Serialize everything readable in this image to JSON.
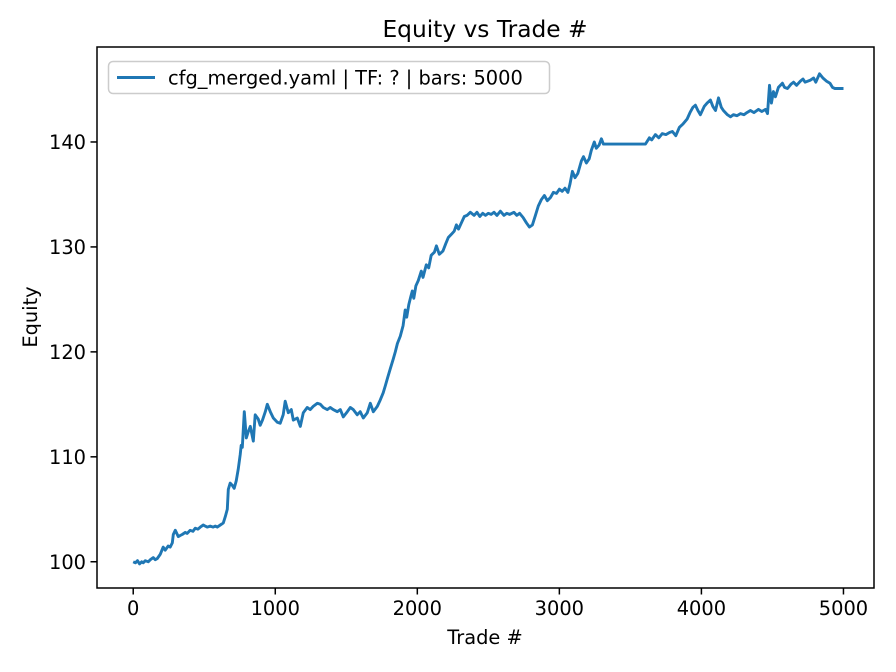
{
  "chart_data": {
    "type": "line",
    "title": "Equity vs Trade #",
    "xlabel": "Trade #",
    "ylabel": "Equity",
    "legend": [
      "cfg_merged.yaml | TF: ? | bars: 5000"
    ],
    "legend_position": "upper left",
    "grid": false,
    "line_color": "#1f77b4",
    "background_color": "#ffffff",
    "spine_color": "#000000",
    "legend_border_color": "#cccccc",
    "xlim": [
      -255,
      5215
    ],
    "ylim": [
      97.5,
      149.05
    ],
    "x_ticks": [
      0,
      1000,
      2000,
      3000,
      4000,
      5000
    ],
    "y_ticks": [
      100,
      110,
      120,
      130,
      140
    ],
    "series": [
      {
        "name": "cfg_merged.yaml | TF: ? | bars: 5000",
        "points": [
          [
            0,
            100.0
          ],
          [
            15,
            99.9
          ],
          [
            30,
            100.1
          ],
          [
            45,
            99.8
          ],
          [
            60,
            100.0
          ],
          [
            70,
            99.9
          ],
          [
            85,
            100.1
          ],
          [
            106,
            100.0
          ],
          [
            120,
            100.2
          ],
          [
            141,
            100.4
          ],
          [
            155,
            100.2
          ],
          [
            169,
            100.3
          ],
          [
            190,
            100.7
          ],
          [
            211,
            101.4
          ],
          [
            225,
            101.1
          ],
          [
            246,
            101.5
          ],
          [
            260,
            101.4
          ],
          [
            275,
            101.8
          ],
          [
            282,
            102.6
          ],
          [
            296,
            103.0
          ],
          [
            317,
            102.4
          ],
          [
            331,
            102.5
          ],
          [
            345,
            102.6
          ],
          [
            366,
            102.8
          ],
          [
            380,
            102.7
          ],
          [
            401,
            103.0
          ],
          [
            420,
            102.9
          ],
          [
            437,
            103.2
          ],
          [
            455,
            103.1
          ],
          [
            472,
            103.3
          ],
          [
            493,
            103.5
          ],
          [
            507,
            103.4
          ],
          [
            521,
            103.3
          ],
          [
            542,
            103.4
          ],
          [
            563,
            103.3
          ],
          [
            578,
            103.4
          ],
          [
            592,
            103.3
          ],
          [
            613,
            103.5
          ],
          [
            634,
            103.7
          ],
          [
            648,
            104.3
          ],
          [
            662,
            105.0
          ],
          [
            669,
            106.9
          ],
          [
            683,
            107.5
          ],
          [
            697,
            107.3
          ],
          [
            711,
            107.0
          ],
          [
            725,
            107.7
          ],
          [
            739,
            108.8
          ],
          [
            753,
            110.2
          ],
          [
            760,
            111.1
          ],
          [
            768,
            110.9
          ],
          [
            775,
            112.6
          ],
          [
            782,
            114.3
          ],
          [
            796,
            111.8
          ],
          [
            810,
            112.4
          ],
          [
            824,
            112.9
          ],
          [
            845,
            111.5
          ],
          [
            859,
            114.0
          ],
          [
            880,
            113.6
          ],
          [
            894,
            113.0
          ],
          [
            910,
            113.5
          ],
          [
            930,
            114.3
          ],
          [
            944,
            115.0
          ],
          [
            965,
            114.3
          ],
          [
            986,
            113.7
          ],
          [
            1014,
            113.3
          ],
          [
            1035,
            113.2
          ],
          [
            1056,
            114.0
          ],
          [
            1070,
            115.3
          ],
          [
            1092,
            114.2
          ],
          [
            1113,
            114.5
          ],
          [
            1127,
            113.5
          ],
          [
            1155,
            113.7
          ],
          [
            1176,
            112.9
          ],
          [
            1197,
            114.2
          ],
          [
            1225,
            114.7
          ],
          [
            1246,
            114.5
          ],
          [
            1267,
            114.8
          ],
          [
            1296,
            115.1
          ],
          [
            1317,
            115.0
          ],
          [
            1338,
            114.7
          ],
          [
            1366,
            114.5
          ],
          [
            1387,
            114.7
          ],
          [
            1408,
            114.5
          ],
          [
            1437,
            114.3
          ],
          [
            1458,
            114.5
          ],
          [
            1479,
            113.8
          ],
          [
            1507,
            114.3
          ],
          [
            1528,
            114.7
          ],
          [
            1549,
            114.5
          ],
          [
            1577,
            114.0
          ],
          [
            1598,
            114.3
          ],
          [
            1620,
            113.7
          ],
          [
            1648,
            114.2
          ],
          [
            1669,
            115.1
          ],
          [
            1690,
            114.3
          ],
          [
            1718,
            114.8
          ],
          [
            1739,
            115.4
          ],
          [
            1760,
            116.1
          ],
          [
            1775,
            116.8
          ],
          [
            1790,
            117.5
          ],
          [
            1810,
            118.4
          ],
          [
            1830,
            119.3
          ],
          [
            1845,
            120.0
          ],
          [
            1860,
            120.8
          ],
          [
            1880,
            121.5
          ],
          [
            1900,
            122.5
          ],
          [
            1915,
            124.0
          ],
          [
            1925,
            123.3
          ],
          [
            1940,
            124.5
          ],
          [
            1955,
            125.3
          ],
          [
            1965,
            125.8
          ],
          [
            1975,
            125.1
          ],
          [
            1990,
            126.3
          ],
          [
            2007,
            126.8
          ],
          [
            2028,
            127.7
          ],
          [
            2040,
            127.1
          ],
          [
            2063,
            128.3
          ],
          [
            2080,
            128.0
          ],
          [
            2098,
            129.2
          ],
          [
            2120,
            129.5
          ],
          [
            2134,
            130.1
          ],
          [
            2155,
            129.3
          ],
          [
            2180,
            129.6
          ],
          [
            2200,
            130.3
          ],
          [
            2218,
            130.9
          ],
          [
            2240,
            131.2
          ],
          [
            2260,
            131.5
          ],
          [
            2275,
            132.1
          ],
          [
            2290,
            131.7
          ],
          [
            2310,
            132.3
          ],
          [
            2331,
            132.9
          ],
          [
            2350,
            133.0
          ],
          [
            2373,
            133.3
          ],
          [
            2400,
            133.0
          ],
          [
            2420,
            133.3
          ],
          [
            2440,
            132.9
          ],
          [
            2460,
            133.2
          ],
          [
            2480,
            133.0
          ],
          [
            2500,
            133.2
          ],
          [
            2520,
            133.1
          ],
          [
            2540,
            133.3
          ],
          [
            2560,
            133.0
          ],
          [
            2585,
            133.4
          ],
          [
            2610,
            133.0
          ],
          [
            2630,
            133.2
          ],
          [
            2650,
            133.1
          ],
          [
            2680,
            133.3
          ],
          [
            2700,
            133.0
          ],
          [
            2720,
            133.2
          ],
          [
            2745,
            132.8
          ],
          [
            2768,
            132.3
          ],
          [
            2789,
            131.9
          ],
          [
            2810,
            132.1
          ],
          [
            2831,
            133.0
          ],
          [
            2852,
            133.9
          ],
          [
            2873,
            134.5
          ],
          [
            2895,
            134.9
          ],
          [
            2915,
            134.4
          ],
          [
            2937,
            134.7
          ],
          [
            2958,
            135.2
          ],
          [
            2980,
            135.1
          ],
          [
            3000,
            135.5
          ],
          [
            3020,
            135.3
          ],
          [
            3040,
            135.6
          ],
          [
            3060,
            135.2
          ],
          [
            3075,
            136.0
          ],
          [
            3092,
            137.2
          ],
          [
            3110,
            136.6
          ],
          [
            3130,
            137.0
          ],
          [
            3155,
            138.2
          ],
          [
            3170,
            138.6
          ],
          [
            3190,
            138.0
          ],
          [
            3210,
            138.4
          ],
          [
            3225,
            139.2
          ],
          [
            3246,
            140.0
          ],
          [
            3260,
            139.4
          ],
          [
            3280,
            139.7
          ],
          [
            3296,
            140.3
          ],
          [
            3310,
            139.8
          ],
          [
            3320,
            139.8
          ],
          [
            3606,
            139.8
          ],
          [
            3634,
            140.4
          ],
          [
            3650,
            140.2
          ],
          [
            3676,
            140.7
          ],
          [
            3700,
            140.4
          ],
          [
            3725,
            140.8
          ],
          [
            3750,
            140.7
          ],
          [
            3775,
            140.9
          ],
          [
            3796,
            141.0
          ],
          [
            3820,
            140.6
          ],
          [
            3845,
            141.4
          ],
          [
            3870,
            141.7
          ],
          [
            3900,
            142.2
          ],
          [
            3920,
            142.8
          ],
          [
            3940,
            143.3
          ],
          [
            3958,
            143.5
          ],
          [
            3975,
            143.0
          ],
          [
            3993,
            142.6
          ],
          [
            4020,
            143.4
          ],
          [
            4040,
            143.7
          ],
          [
            4063,
            144.0
          ],
          [
            4080,
            143.4
          ],
          [
            4099,
            143.0
          ],
          [
            4120,
            144.2
          ],
          [
            4140,
            143.3
          ],
          [
            4155,
            143.0
          ],
          [
            4183,
            142.6
          ],
          [
            4205,
            142.4
          ],
          [
            4225,
            142.6
          ],
          [
            4250,
            142.5
          ],
          [
            4275,
            142.7
          ],
          [
            4300,
            142.6
          ],
          [
            4320,
            142.8
          ],
          [
            4345,
            143.0
          ],
          [
            4370,
            142.8
          ],
          [
            4401,
            143.1
          ],
          [
            4425,
            142.9
          ],
          [
            4451,
            143.1
          ],
          [
            4465,
            142.7
          ],
          [
            4479,
            145.4
          ],
          [
            4493,
            143.7
          ],
          [
            4507,
            144.8
          ],
          [
            4521,
            144.3
          ],
          [
            4542,
            145.2
          ],
          [
            4570,
            145.6
          ],
          [
            4585,
            145.2
          ],
          [
            4606,
            145.1
          ],
          [
            4630,
            145.5
          ],
          [
            4648,
            145.7
          ],
          [
            4670,
            145.4
          ],
          [
            4697,
            145.8
          ],
          [
            4715,
            146.0
          ],
          [
            4730,
            145.7
          ],
          [
            4768,
            145.9
          ],
          [
            4790,
            146.1
          ],
          [
            4805,
            145.7
          ],
          [
            4831,
            146.5
          ],
          [
            4855,
            146.1
          ],
          [
            4880,
            145.8
          ],
          [
            4905,
            145.6
          ],
          [
            4923,
            145.2
          ],
          [
            4940,
            145.1
          ],
          [
            5000,
            145.1
          ]
        ]
      }
    ]
  }
}
